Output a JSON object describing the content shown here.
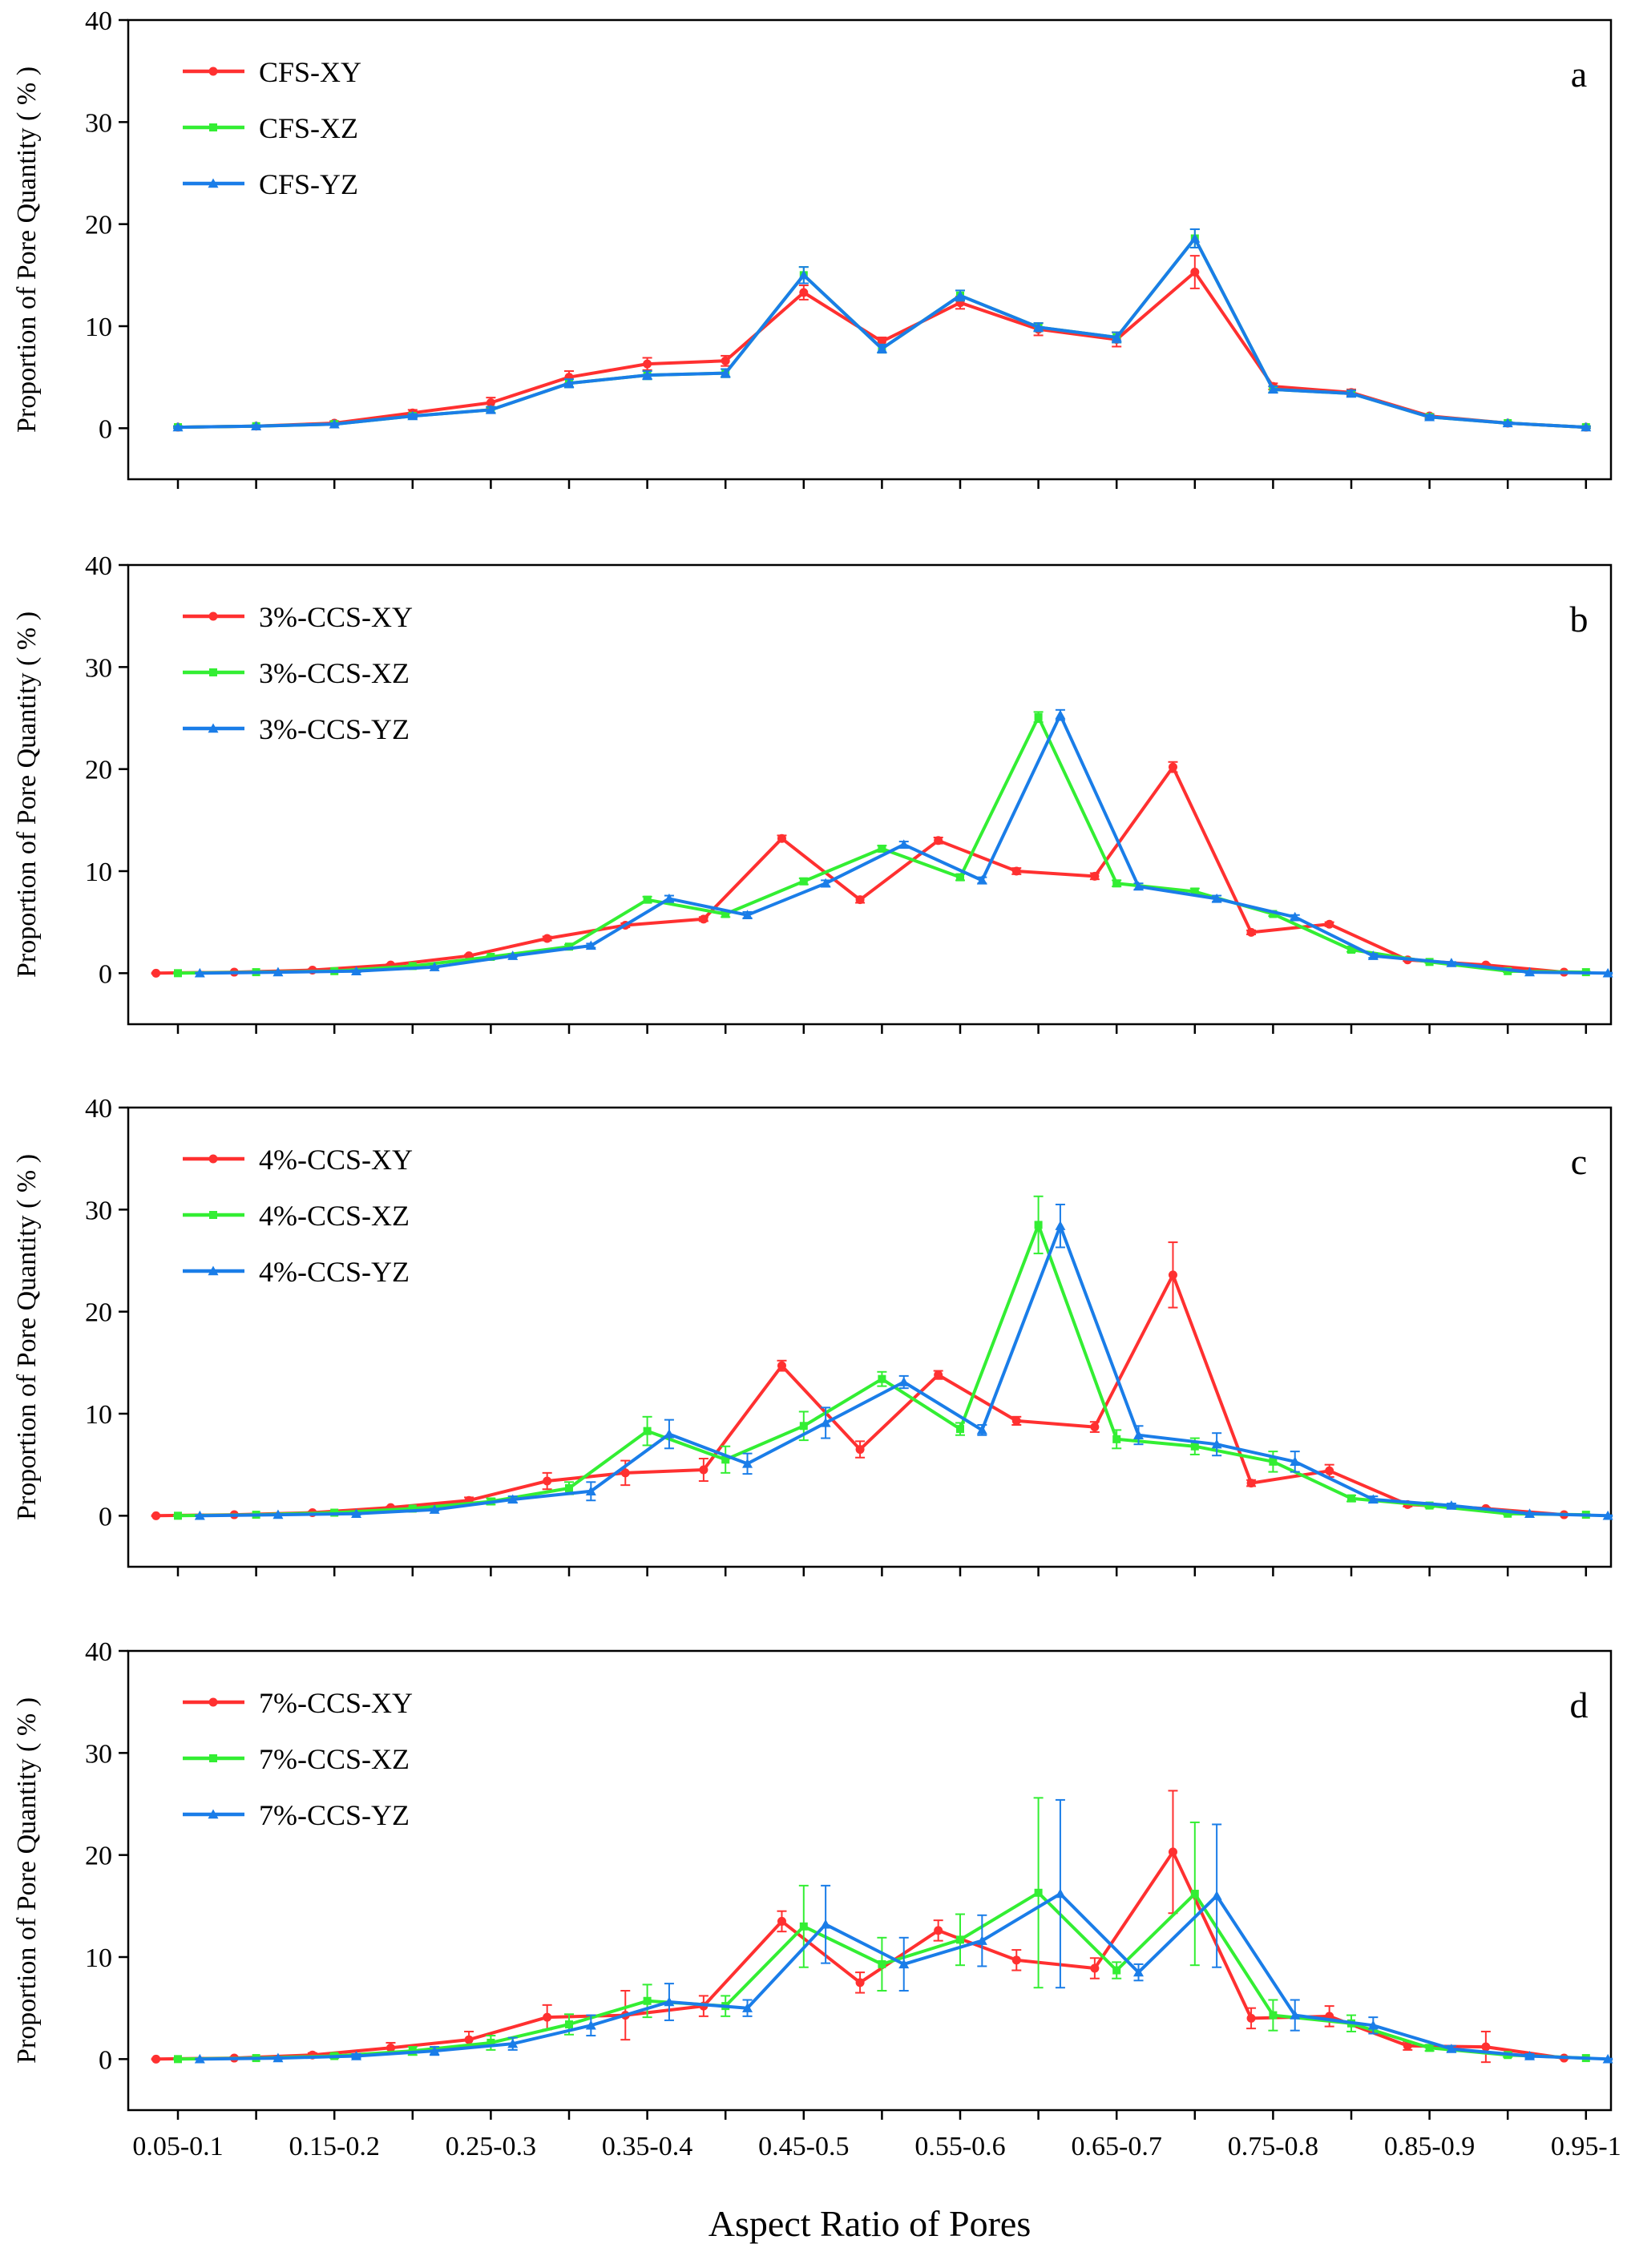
{
  "chart_data": {
    "type": "line",
    "xlabel": "Aspect Ratio of Pores",
    "ylabel": "Proportion of Pore Quantity ( % )",
    "x_tick_labels": [
      "0.05-0.1",
      "0.15-0.2",
      "0.25-0.3",
      "0.35-0.4",
      "0.45-0.5",
      "0.55-0.6",
      "0.65-0.7",
      "0.75-0.8",
      "0.85-0.9",
      "0.95-1"
    ],
    "x_categories": [
      "0.05-0.1",
      "0.1-0.15",
      "0.15-0.2",
      "0.2-0.25",
      "0.25-0.3",
      "0.3-0.35",
      "0.35-0.4",
      "0.4-0.45",
      "0.45-0.5",
      "0.5-0.55",
      "0.55-0.6",
      "0.6-0.65",
      "0.65-0.7",
      "0.7-0.75",
      "0.75-0.8",
      "0.8-0.85",
      "0.85-0.9",
      "0.9-0.95",
      "0.95-1"
    ],
    "ylim": [
      -5,
      40
    ],
    "yticks": [
      0,
      10,
      20,
      30,
      40
    ],
    "colors": {
      "XY": "#ff3030",
      "XZ": "#33ee33",
      "YZ": "#1a7de8"
    },
    "panels": [
      {
        "letter": "a",
        "series": [
          {
            "name": "CFS-XY",
            "key": "XY",
            "marker": "circle",
            "offset": 0,
            "values": [
              0.1,
              0.2,
              0.5,
              1.5,
              2.5,
              5.0,
              6.3,
              6.6,
              13.3,
              8.5,
              12.3,
              9.7,
              8.7,
              15.3,
              4.1,
              3.5,
              1.2,
              0.5,
              0.1
            ],
            "errors": [
              0.1,
              0.1,
              0.2,
              0.3,
              0.5,
              0.6,
              0.6,
              0.5,
              0.7,
              0.4,
              0.6,
              0.6,
              0.7,
              1.6,
              0.3,
              0.3,
              0.2,
              0.1,
              0.1
            ]
          },
          {
            "name": "CFS-XZ",
            "key": "XZ",
            "marker": "square",
            "offset": 0,
            "values": [
              0.1,
              0.2,
              0.4,
              1.2,
              1.8,
              4.4,
              5.2,
              5.4,
              15.0,
              7.8,
              13.0,
              9.9,
              8.9,
              18.6,
              3.8,
              3.4,
              1.1,
              0.5,
              0.1
            ],
            "errors": [
              0.1,
              0.1,
              0.1,
              0.2,
              0.3,
              0.4,
              0.4,
              0.4,
              0.8,
              0.4,
              0.5,
              0.4,
              0.5,
              0.9,
              0.3,
              0.3,
              0.2,
              0.1,
              0.1
            ]
          },
          {
            "name": "CFS-YZ",
            "key": "YZ",
            "marker": "triangle",
            "offset": 0,
            "values": [
              0.1,
              0.2,
              0.4,
              1.2,
              1.8,
              4.4,
              5.2,
              5.4,
              15.0,
              7.8,
              13.0,
              9.9,
              8.9,
              18.6,
              3.8,
              3.4,
              1.1,
              0.5,
              0.1
            ],
            "errors": [
              0.1,
              0.1,
              0.1,
              0.2,
              0.3,
              0.4,
              0.4,
              0.4,
              0.8,
              0.4,
              0.5,
              0.4,
              0.5,
              0.9,
              0.3,
              0.3,
              0.2,
              0.1,
              0.1
            ]
          }
        ]
      },
      {
        "letter": "b",
        "series": [
          {
            "name": "3%-CCS-XY",
            "key": "XY",
            "marker": "circle",
            "offset": -0.28,
            "values": [
              0.0,
              0.1,
              0.3,
              0.8,
              1.7,
              3.4,
              4.7,
              5.3,
              13.2,
              7.2,
              13.0,
              10.0,
              9.5,
              20.2,
              4.0,
              4.8,
              1.3,
              0.8,
              0.1
            ],
            "errors": [
              0.05,
              0.05,
              0.1,
              0.1,
              0.1,
              0.2,
              0.2,
              0.2,
              0.3,
              0.3,
              0.3,
              0.3,
              0.3,
              0.5,
              0.2,
              0.2,
              0.1,
              0.1,
              0.05
            ]
          },
          {
            "name": "3%-CCS-XZ",
            "key": "XZ",
            "marker": "square",
            "offset": 0,
            "values": [
              0.0,
              0.1,
              0.2,
              0.7,
              1.6,
              2.6,
              7.2,
              5.8,
              9.0,
              12.2,
              9.4,
              25.1,
              8.8,
              8.0,
              5.8,
              2.3,
              1.1,
              0.2,
              0.1
            ],
            "errors": [
              0.05,
              0.05,
              0.1,
              0.1,
              0.1,
              0.2,
              0.3,
              0.3,
              0.3,
              0.3,
              0.3,
              0.5,
              0.3,
              0.3,
              0.2,
              0.2,
              0.1,
              0.1,
              0.05
            ]
          },
          {
            "name": "3%-CCS-YZ",
            "key": "YZ",
            "marker": "triangle",
            "offset": 0.28,
            "values": [
              0.0,
              0.1,
              0.2,
              0.6,
              1.7,
              2.7,
              7.3,
              5.7,
              8.8,
              12.6,
              9.1,
              25.3,
              8.5,
              7.3,
              5.5,
              1.7,
              1.0,
              0.1,
              0.0
            ],
            "errors": [
              0.05,
              0.05,
              0.1,
              0.1,
              0.1,
              0.2,
              0.3,
              0.3,
              0.3,
              0.3,
              0.3,
              0.5,
              0.3,
              0.3,
              0.2,
              0.2,
              0.1,
              0.1,
              0.05
            ]
          }
        ]
      },
      {
        "letter": "c",
        "series": [
          {
            "name": "4%-CCS-XY",
            "key": "XY",
            "marker": "circle",
            "offset": -0.28,
            "values": [
              0.0,
              0.1,
              0.3,
              0.8,
              1.5,
              3.4,
              4.2,
              4.5,
              14.7,
              6.5,
              13.8,
              9.3,
              8.7,
              23.6,
              3.2,
              4.4,
              1.1,
              0.7,
              0.1
            ],
            "errors": [
              0.05,
              0.05,
              0.1,
              0.1,
              0.3,
              0.8,
              1.2,
              1.1,
              0.5,
              0.8,
              0.4,
              0.4,
              0.5,
              3.2,
              0.3,
              0.6,
              0.2,
              0.1,
              0.05
            ]
          },
          {
            "name": "4%-CCS-XZ",
            "key": "XZ",
            "marker": "square",
            "offset": 0,
            "values": [
              0.0,
              0.1,
              0.3,
              0.7,
              1.4,
              2.7,
              8.3,
              5.5,
              8.8,
              13.4,
              8.5,
              28.5,
              7.5,
              6.8,
              5.3,
              1.7,
              1.0,
              0.2,
              0.1
            ],
            "errors": [
              0.05,
              0.05,
              0.1,
              0.1,
              0.3,
              0.6,
              1.4,
              1.3,
              1.4,
              0.7,
              0.6,
              2.8,
              0.9,
              0.8,
              1.0,
              0.3,
              0.2,
              0.1,
              0.05
            ]
          },
          {
            "name": "4%-CCS-YZ",
            "key": "YZ",
            "marker": "triangle",
            "offset": 0.28,
            "values": [
              0.0,
              0.1,
              0.2,
              0.6,
              1.6,
              2.4,
              8.0,
              5.1,
              9.1,
              13.1,
              8.4,
              28.4,
              7.9,
              7.0,
              5.3,
              1.6,
              1.0,
              0.2,
              0.0
            ],
            "errors": [
              0.05,
              0.05,
              0.1,
              0.1,
              0.3,
              0.9,
              1.4,
              1.0,
              1.5,
              0.6,
              0.5,
              2.1,
              0.9,
              1.1,
              1.0,
              0.3,
              0.2,
              0.1,
              0.05
            ]
          }
        ]
      },
      {
        "letter": "d",
        "series": [
          {
            "name": "7%-CCS-XY",
            "key": "XY",
            "marker": "circle",
            "offset": -0.28,
            "values": [
              0.0,
              0.1,
              0.4,
              1.1,
              1.9,
              4.1,
              4.3,
              5.2,
              13.5,
              7.5,
              12.6,
              9.7,
              8.9,
              20.3,
              4.0,
              4.2,
              1.3,
              1.2,
              0.1
            ],
            "errors": [
              0.05,
              0.1,
              0.2,
              0.5,
              0.8,
              1.2,
              2.4,
              1.0,
              1.0,
              1.0,
              1.0,
              1.0,
              1.0,
              6.0,
              1.0,
              1.0,
              0.4,
              1.5,
              0.05
            ]
          },
          {
            "name": "7%-CCS-XZ",
            "key": "XZ",
            "marker": "square",
            "offset": 0,
            "values": [
              0.0,
              0.1,
              0.3,
              0.8,
              1.6,
              3.4,
              5.7,
              5.2,
              13.0,
              9.3,
              11.7,
              16.3,
              8.7,
              16.2,
              4.3,
              3.5,
              1.1,
              0.4,
              0.1
            ],
            "errors": [
              0.05,
              0.1,
              0.2,
              0.4,
              0.7,
              1.0,
              1.6,
              1.0,
              4.0,
              2.6,
              2.5,
              9.3,
              0.8,
              7.0,
              1.5,
              0.8,
              0.3,
              0.2,
              0.05
            ]
          },
          {
            "name": "7%-CCS-YZ",
            "key": "YZ",
            "marker": "triangle",
            "offset": 0.28,
            "values": [
              0.0,
              0.1,
              0.3,
              0.8,
              1.5,
              3.3,
              5.6,
              5.0,
              13.2,
              9.3,
              11.6,
              16.2,
              8.5,
              16.0,
              4.3,
              3.3,
              1.0,
              0.3,
              0.0
            ],
            "errors": [
              0.05,
              0.1,
              0.2,
              0.4,
              0.6,
              1.0,
              1.8,
              0.8,
              3.8,
              2.6,
              2.5,
              9.2,
              0.8,
              7.0,
              1.5,
              0.8,
              0.3,
              0.2,
              0.05
            ]
          }
        ]
      }
    ]
  }
}
